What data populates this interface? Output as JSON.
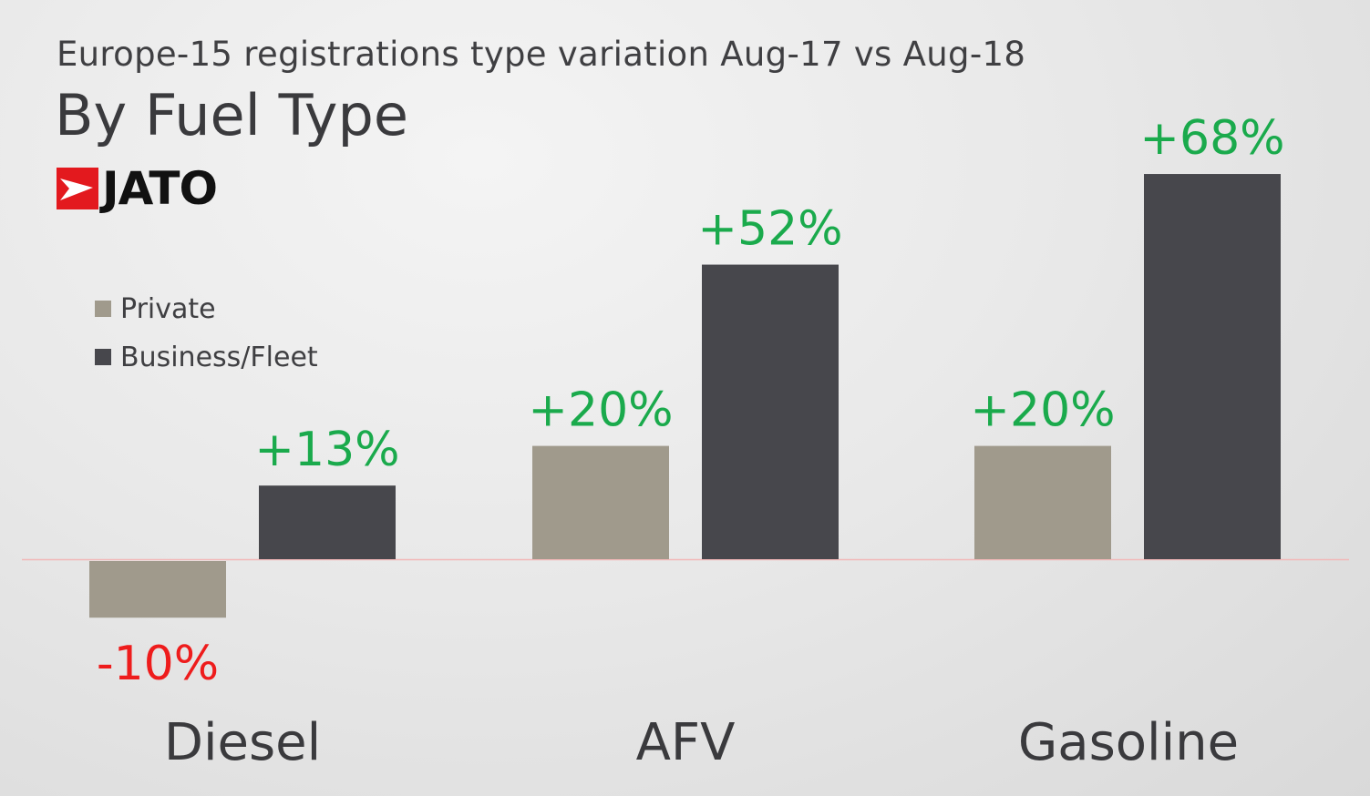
{
  "header": {
    "subtitle": "Europe-15 registrations type variation Aug-17 vs Aug-18",
    "title": "By Fuel Type",
    "logo_text": "JATO"
  },
  "colors": {
    "private": "#a09a8c",
    "business": "#47474c",
    "positive_label": "#1aaa4c",
    "negative_label": "#ee1c1c",
    "zero_line": "#f2b8b8",
    "category_label": "#3a3a3d",
    "logo_red": "#e3191e"
  },
  "chart_data": {
    "type": "bar",
    "categories": [
      "Diesel",
      "AFV",
      "Gasoline"
    ],
    "series": [
      {
        "name": "Private",
        "values": [
          -10,
          20,
          20
        ],
        "labels": [
          "-10%",
          "+20%",
          "+20%"
        ]
      },
      {
        "name": "Business/Fleet",
        "values": [
          13,
          52,
          68
        ],
        "labels": [
          "+13%",
          "+52%",
          "+68%"
        ]
      }
    ],
    "legend_position": "top-left",
    "grid": false,
    "ylim": [
      -15,
      75
    ]
  }
}
